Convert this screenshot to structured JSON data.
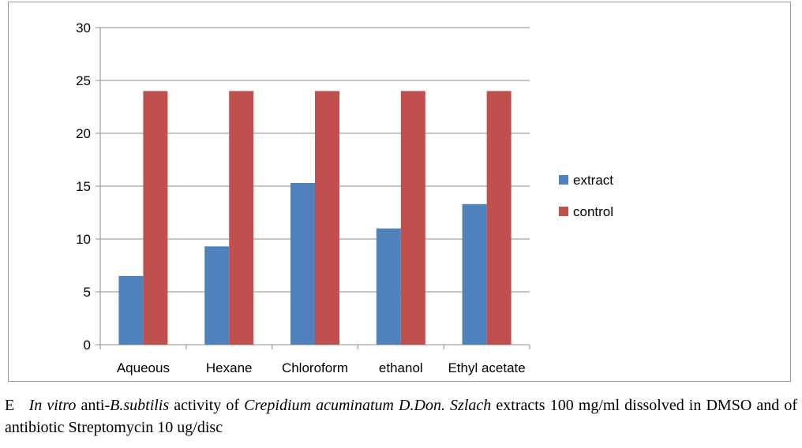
{
  "chart_data": {
    "type": "bar",
    "categories": [
      "Aqueous",
      "Hexane",
      "Chloroform",
      "ethanol",
      "Ethyl acetate"
    ],
    "series": [
      {
        "name": "extract",
        "values": [
          6.5,
          9.3,
          15.3,
          11,
          13.3
        ],
        "color": "#4f81bd"
      },
      {
        "name": "control",
        "values": [
          24,
          24,
          24,
          24,
          24
        ],
        "color": "#c0504d"
      }
    ],
    "ylim": [
      0,
      30
    ],
    "yticks": [
      "0",
      "5",
      "10",
      "15",
      "20",
      "25",
      "30"
    ],
    "grid": true,
    "legend": "right"
  },
  "caption": {
    "label": "E",
    "part1_italic": "In vitro",
    "part2": " anti-",
    "part3_italic": "B.subtilis",
    "part4": " activity of ",
    "part5_italic": "Crepidium acuminatum D.Don. Szlach",
    "part6": " extracts 100 mg/ml dissolved in DMSO and of antibiotic Streptomycin 10 ug/disc"
  }
}
